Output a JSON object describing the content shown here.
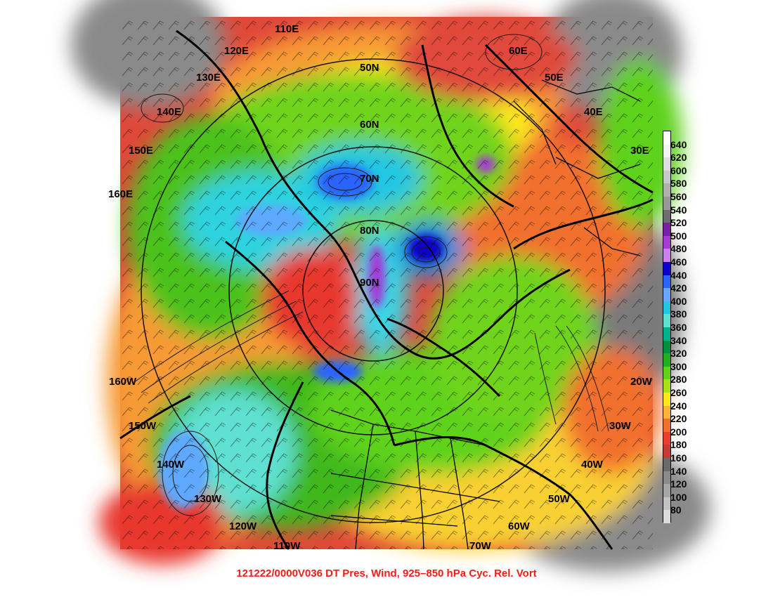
{
  "caption": "121222/0000V036 DT Pres, Wind, 925–850 hPa Cyc. Rel. Vort",
  "colors": {
    "caption": "#ff1a1a",
    "background": "#ffffff"
  },
  "colorbar": {
    "labels": [
      "640",
      "620",
      "600",
      "580",
      "560",
      "540",
      "520",
      "500",
      "480",
      "460",
      "440",
      "420",
      "400",
      "380",
      "360",
      "340",
      "320",
      "300",
      "280",
      "260",
      "240",
      "220",
      "200",
      "180",
      "160",
      "140",
      "120",
      "100",
      "80"
    ],
    "colors": [
      "#f4f4f4",
      "#dedede",
      "#c8c8c8",
      "#b0b0b0",
      "#989898",
      "#6e6e6e",
      "#7a1fa8",
      "#a43bd6",
      "#c981f0",
      "#0c00cf",
      "#2b63ff",
      "#6aa6ff",
      "#20c7e2",
      "#5ee0d0",
      "#00b28c",
      "#009040",
      "#1fb020",
      "#5fd21a",
      "#a8e01c",
      "#ffe81a",
      "#ffb23a",
      "#f2702e",
      "#ec3e2e",
      "#c63a38",
      "#6a6a6a",
      "#8a8a8a",
      "#a6a6a6",
      "#c2c2c2",
      "#dcdcdc"
    ]
  },
  "map": {
    "longitude_labels": [
      "110E",
      "120E",
      "130E",
      "140E",
      "150E",
      "160E",
      "160W",
      "150W",
      "140W",
      "130W",
      "120W",
      "110W",
      "70W",
      "60W",
      "50W",
      "40W",
      "30W",
      "20W",
      "30E",
      "40E",
      "50E",
      "60E"
    ],
    "latitude_labels": [
      "50N",
      "60N",
      "70N",
      "80N",
      "90N"
    ]
  }
}
